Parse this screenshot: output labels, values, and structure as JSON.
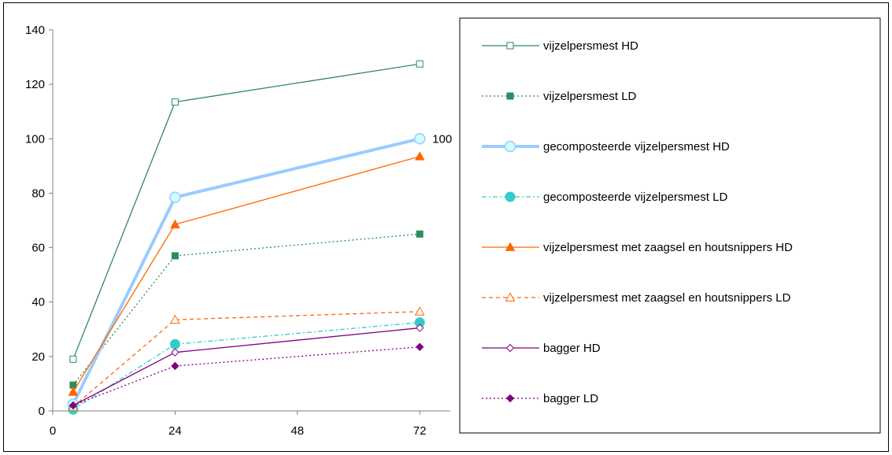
{
  "chart_data": {
    "type": "line",
    "title": "",
    "xlabel": "",
    "ylabel": "",
    "x": [
      4,
      24,
      72
    ],
    "xlim": [
      0,
      78
    ],
    "xticks": [
      0,
      24,
      48,
      72
    ],
    "ylim": [
      0,
      140
    ],
    "yticks": [
      0,
      20,
      40,
      60,
      80,
      100,
      120,
      140
    ],
    "grid": false,
    "legend_position": "right",
    "annotations": [
      {
        "x": 72,
        "y": 100,
        "text": "100"
      }
    ],
    "series": [
      {
        "name": "vijzelpersmest HD",
        "values": [
          19,
          113.5,
          127.5
        ],
        "color": "#2e8b57",
        "dash": "solid",
        "marker": "square-open",
        "width": 1.3
      },
      {
        "name": "vijzelpersmest LD",
        "values": [
          9.5,
          57,
          65
        ],
        "color": "#2e8b57",
        "dash": "dotted",
        "marker": "square-filled",
        "width": 1.3
      },
      {
        "name": "gecomposteerde vijzelpersmest HD",
        "values": [
          2.5,
          78.5,
          100
        ],
        "color": "#99ccff",
        "dash": "solid",
        "marker": "circle-open",
        "width": 4
      },
      {
        "name": "gecomposteerde vijzelpersmest LD",
        "values": [
          0.5,
          24.5,
          32.5
        ],
        "color": "#33cccc",
        "dash": "dashdot",
        "marker": "circle-filled",
        "width": 1.3
      },
      {
        "name": "vijzelpersmest met zaagsel en houtsnippers HD",
        "values": [
          7,
          68.5,
          93.5
        ],
        "color": "#ff6600",
        "dash": "solid",
        "marker": "triangle-filled",
        "width": 1.3
      },
      {
        "name": "vijzelpersmest met zaagsel en houtsnippers LD",
        "values": [
          1.5,
          33.5,
          36.5
        ],
        "color": "#ff6600",
        "dash": "dashed",
        "marker": "triangle-open",
        "width": 1.3
      },
      {
        "name": "bagger HD",
        "values": [
          2,
          21.5,
          30.5
        ],
        "color": "#800080",
        "dash": "solid",
        "marker": "diamond-open",
        "width": 1.3
      },
      {
        "name": "bagger LD",
        "values": [
          2,
          16.5,
          23.5
        ],
        "color": "#800080",
        "dash": "dotted",
        "marker": "diamond-filled",
        "width": 1.3
      }
    ]
  }
}
